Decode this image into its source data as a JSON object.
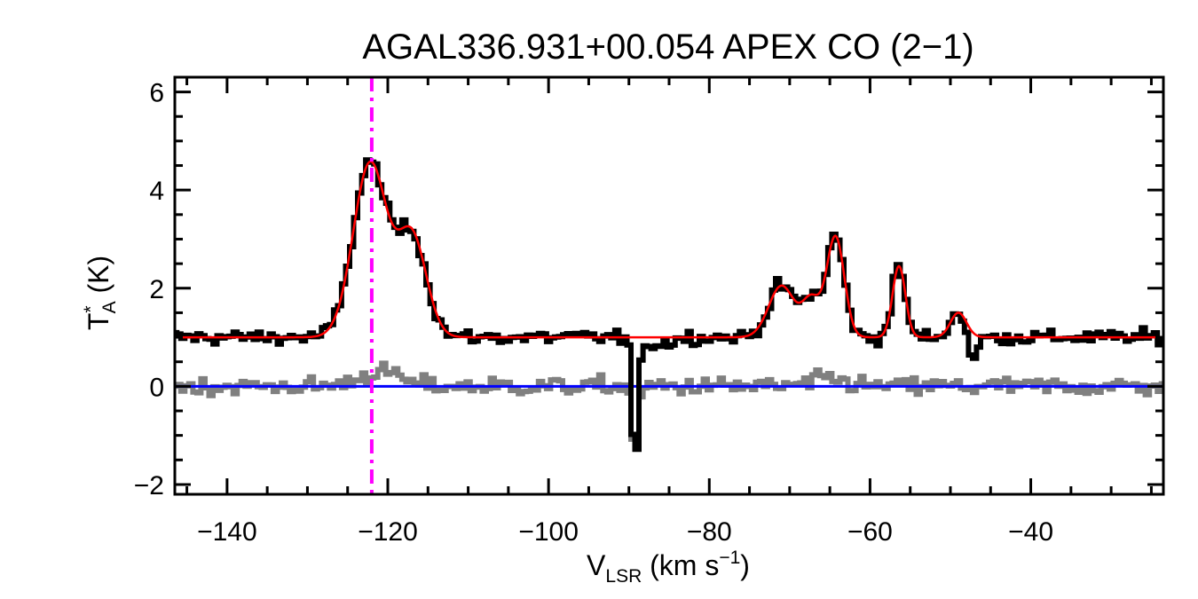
{
  "chart_data": {
    "type": "line",
    "title": "AGAL336.931+00.054  APEX CO (2−1)",
    "xlabel": {
      "main": "V",
      "sub": "LSR",
      "rest": " (km s",
      "sup": "−1",
      "end": ")"
    },
    "ylabel": {
      "main": "T",
      "sup": "*",
      "sub": "A",
      "rest": " (K)"
    },
    "xlim": [
      -146.5,
      -23.5
    ],
    "ylim": [
      -2.2,
      6.3
    ],
    "xticks": [
      -140,
      -120,
      -100,
      -80,
      -60,
      -40
    ],
    "xtick_labels": [
      "−140",
      "−120",
      "−100",
      "−80",
      "−60",
      "−40"
    ],
    "yticks": [
      -2,
      0,
      2,
      4,
      6
    ],
    "ytick_labels": [
      "−2",
      "0",
      "2",
      "4",
      "6"
    ],
    "x_minor_step": 5,
    "y_minor_step": 0.5,
    "reference_velocity": -122.0,
    "baseline_level": 0,
    "fit": {
      "offset": 1.0,
      "components": [
        {
          "center": -122.2,
          "amplitude": 3.55,
          "sigma": 2.1
        },
        {
          "center": -117.0,
          "amplitude": 2.05,
          "sigma": 1.8
        },
        {
          "center": -71.0,
          "amplitude": 1.05,
          "sigma": 1.6
        },
        {
          "center": -67.3,
          "amplitude": 0.75,
          "sigma": 1.1
        },
        {
          "center": -64.3,
          "amplitude": 2.05,
          "sigma": 1.1
        },
        {
          "center": -56.4,
          "amplitude": 1.45,
          "sigma": 0.8
        },
        {
          "center": -49.0,
          "amplitude": 0.5,
          "sigma": 1.0
        }
      ]
    },
    "spectrum": {
      "channel_width": 0.5,
      "noise": 0.07,
      "absorption": [
        {
          "center": -89.2,
          "depth": 2.85,
          "sigma": 0.35
        },
        {
          "center": -47.2,
          "depth": 0.55,
          "sigma": 0.55
        },
        {
          "center": -86.5,
          "depth": 0.15,
          "sigma": 1.5
        }
      ]
    },
    "residual": {
      "noise": 0.09,
      "features": [
        {
          "center": -121.0,
          "amplitude": 0.3,
          "sigma": 2.5
        },
        {
          "center": -89.2,
          "amplitude": -1.3,
          "sigma": 0.4
        },
        {
          "center": -65.0,
          "amplitude": 0.15,
          "sigma": 2.0
        }
      ]
    },
    "series": [
      {
        "role": "observed",
        "color": "#000000"
      },
      {
        "role": "gaussian fit",
        "color": "#ff0000"
      },
      {
        "role": "residual",
        "color": "#808080"
      },
      {
        "role": "baseline",
        "color": "#0000ff"
      },
      {
        "role": "reference velocity",
        "color": "#ff00ff"
      }
    ]
  }
}
